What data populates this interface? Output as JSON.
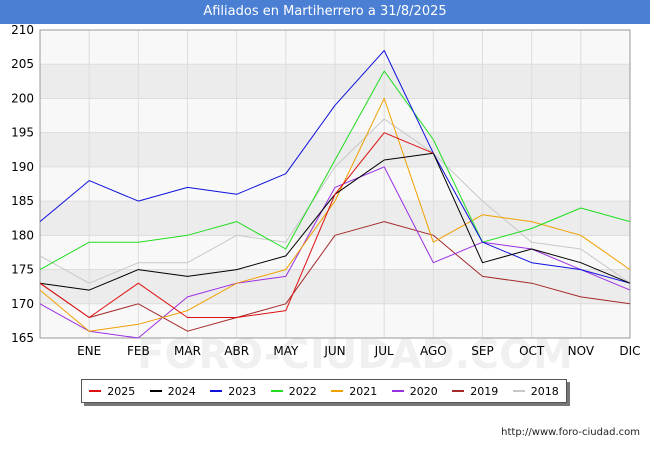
{
  "chart_data": {
    "type": "line",
    "title": "Afiliados en Martiherrero a 31/8/2025",
    "categories": [
      "",
      "ENE",
      "FEB",
      "MAR",
      "ABR",
      "MAY",
      "JUN",
      "JUL",
      "AGO",
      "SEP",
      "OCT",
      "NOV",
      "DIC"
    ],
    "ylim": [
      165,
      210
    ],
    "yticks": [
      165,
      170,
      175,
      180,
      185,
      190,
      195,
      200,
      205,
      210
    ],
    "grid": true,
    "legend_position": "bottom",
    "watermark": "FORO-CIUDAD.COM",
    "source": "http://www.foro-ciudad.com",
    "series": [
      {
        "name": "2018",
        "color": "#c8c8c8",
        "values": [
          177,
          173,
          176,
          176,
          180,
          179,
          190,
          197,
          192,
          185,
          179,
          178,
          173
        ]
      },
      {
        "name": "2019",
        "color": "#a52a2a",
        "values": [
          173,
          168,
          170,
          166,
          168,
          170,
          180,
          182,
          180,
          174,
          173,
          171,
          170
        ]
      },
      {
        "name": "2020",
        "color": "#9b30e0",
        "values": [
          170,
          166,
          165,
          171,
          173,
          174,
          187,
          190,
          176,
          179,
          178,
          175,
          172
        ]
      },
      {
        "name": "2021",
        "color": "#f0a000",
        "values": [
          172,
          166,
          167,
          169,
          173,
          175,
          185,
          200,
          179,
          183,
          182,
          180,
          175
        ]
      },
      {
        "name": "2022",
        "color": "#22dd22",
        "values": [
          175,
          179,
          179,
          180,
          182,
          178,
          191,
          204,
          194,
          179,
          181,
          184,
          182
        ]
      },
      {
        "name": "2023",
        "color": "#1010dd",
        "values": [
          182,
          188,
          185,
          187,
          186,
          189,
          199,
          207,
          192,
          179,
          176,
          175,
          173
        ]
      },
      {
        "name": "2024",
        "color": "#000000",
        "values": [
          173,
          172,
          175,
          174,
          175,
          177,
          186,
          191,
          192,
          176,
          178,
          176,
          173
        ]
      },
      {
        "name": "2025",
        "color": "#dd1111",
        "values": [
          173,
          168,
          173,
          168,
          168,
          169,
          186,
          195,
          192,
          null,
          null,
          null,
          null
        ]
      }
    ],
    "legend_order": [
      "2025",
      "2024",
      "2023",
      "2022",
      "2021",
      "2020",
      "2019",
      "2018"
    ]
  }
}
